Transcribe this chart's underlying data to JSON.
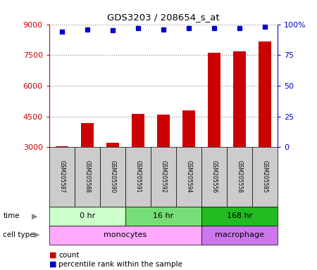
{
  "title": "GDS3203 / 208654_s_at",
  "samples": [
    "GSM205587",
    "GSM205588",
    "GSM205590",
    "GSM205591",
    "GSM205592",
    "GSM205594",
    "GSM205556",
    "GSM205558",
    "GSM205585"
  ],
  "counts": [
    3060,
    4180,
    3200,
    4630,
    4600,
    4780,
    7620,
    7680,
    8150
  ],
  "percentile_ranks": [
    94,
    96,
    95,
    97,
    96,
    97,
    97,
    97,
    98
  ],
  "ylim_left": [
    3000,
    9000
  ],
  "ylim_right": [
    0,
    100
  ],
  "yticks_left": [
    3000,
    4500,
    6000,
    7500,
    9000
  ],
  "yticks_right": [
    0,
    25,
    50,
    75,
    100
  ],
  "time_groups": [
    {
      "label": "0 hr",
      "start": 0,
      "end": 3,
      "color": "#ccffcc"
    },
    {
      "label": "16 hr",
      "start": 3,
      "end": 6,
      "color": "#77dd77"
    },
    {
      "label": "168 hr",
      "start": 6,
      "end": 9,
      "color": "#22bb22"
    }
  ],
  "cell_type_groups": [
    {
      "label": "monocytes",
      "start": 0,
      "end": 6,
      "color": "#ffaaff"
    },
    {
      "label": "macrophage",
      "start": 6,
      "end": 9,
      "color": "#cc77ee"
    }
  ],
  "bar_color": "#cc0000",
  "dot_color": "#0000cc",
  "sample_box_color": "#cccccc",
  "grid_color": "#888888",
  "left_axis_color": "#cc0000",
  "right_axis_color": "#0000cc",
  "legend_count_color": "#cc0000",
  "legend_dot_color": "#0000cc",
  "bar_width": 0.5
}
